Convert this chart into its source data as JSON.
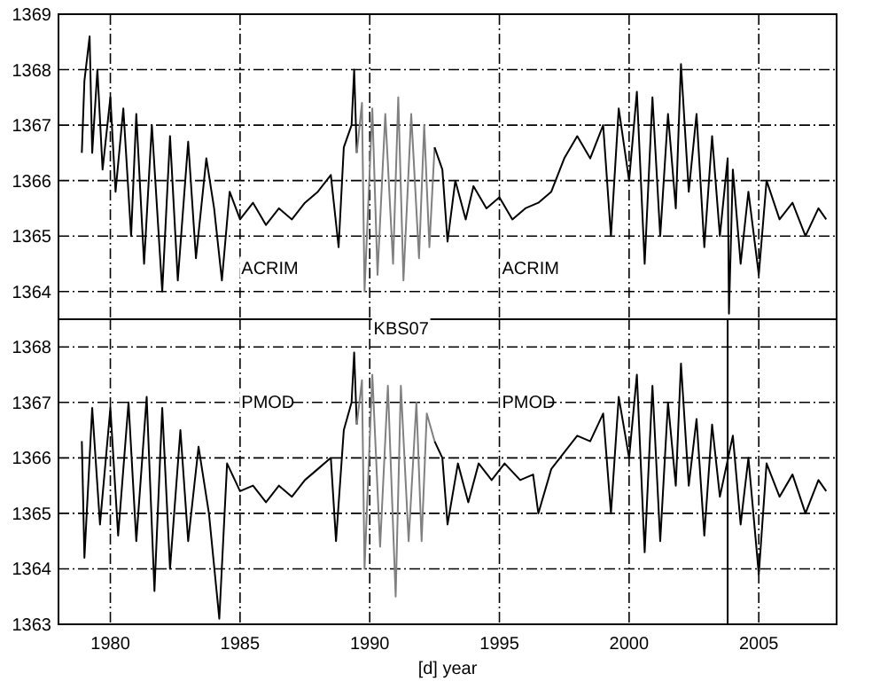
{
  "chart_data": [
    {
      "type": "line",
      "xlim": [
        1978,
        2008
      ],
      "xticks": [
        1980,
        1985,
        1990,
        1995,
        2000,
        2005
      ],
      "ylim": [
        1363.5,
        1369
      ],
      "yticks": [
        1364,
        1365,
        1366,
        1367,
        1368,
        1369
      ],
      "grid": true,
      "tick_labels": "y",
      "annotations": [
        "ACRIM",
        "ACRIM"
      ],
      "series": [
        {
          "color": "#000000",
          "x": [
            1978.9,
            1979.0,
            1979.2,
            1979.3,
            1979.5,
            1979.7,
            1980.0,
            1980.2,
            1980.5,
            1980.8,
            1981.0,
            1981.3,
            1981.6,
            1982.0,
            1982.3,
            1982.6,
            1983.0,
            1983.3,
            1983.7,
            1984.0,
            1984.3,
            1984.6,
            1985.0,
            1985.5,
            1986.0,
            1986.5,
            1987.0,
            1987.5,
            1988.0,
            1988.5,
            1988.8,
            1989.0,
            1989.3,
            1989.4,
            1989.5
          ],
          "values": [
            1366.5,
            1367.8,
            1368.6,
            1366.5,
            1368.0,
            1366.2,
            1367.5,
            1365.8,
            1367.3,
            1365.0,
            1367.2,
            1364.5,
            1367.0,
            1364.0,
            1366.8,
            1364.2,
            1366.7,
            1364.6,
            1366.4,
            1365.5,
            1364.2,
            1365.8,
            1365.3,
            1365.6,
            1365.2,
            1365.5,
            1365.3,
            1365.6,
            1365.8,
            1366.1,
            1364.8,
            1366.6,
            1367.0,
            1368.0,
            1366.5
          ]
        },
        {
          "color": "#808080",
          "x": [
            1989.5,
            1989.7,
            1989.8,
            1990.1,
            1990.3,
            1990.6,
            1990.9,
            1991.1,
            1991.3,
            1991.6,
            1991.9,
            1992.1,
            1992.3,
            1992.5
          ],
          "values": [
            1366.5,
            1367.4,
            1364.0,
            1367.3,
            1364.3,
            1367.2,
            1364.5,
            1367.5,
            1364.2,
            1367.2,
            1364.6,
            1367.0,
            1364.8,
            1366.6
          ]
        },
        {
          "color": "#000000",
          "x": [
            1992.5,
            1992.8,
            1993.0,
            1993.3,
            1993.7,
            1994.0,
            1994.5,
            1995.0,
            1995.5,
            1996.0,
            1996.5,
            1997.0,
            1997.5,
            1998.0,
            1998.5,
            1999.0,
            1999.3,
            1999.6,
            2000.0,
            2000.3,
            2000.6,
            2000.9,
            2001.2,
            2001.5,
            2001.8,
            2002.0,
            2002.3,
            2002.6,
            2002.9,
            2003.2,
            2003.5,
            2003.8,
            2003.85,
            2004.0,
            2004.3,
            2004.6,
            2005.0,
            2005.3,
            2005.8,
            2006.3,
            2006.8,
            2007.3,
            2007.6
          ],
          "values": [
            1366.6,
            1366.2,
            1364.9,
            1366.0,
            1365.3,
            1365.9,
            1365.5,
            1365.7,
            1365.3,
            1365.5,
            1365.6,
            1365.8,
            1366.4,
            1366.8,
            1366.4,
            1367.0,
            1365.0,
            1367.3,
            1366.0,
            1367.6,
            1364.5,
            1367.5,
            1365.0,
            1367.2,
            1365.5,
            1368.1,
            1365.8,
            1367.2,
            1364.8,
            1366.8,
            1365.0,
            1366.4,
            1363.6,
            1366.2,
            1364.5,
            1365.8,
            1364.3,
            1366.0,
            1365.3,
            1365.6,
            1365.0,
            1365.5,
            1365.3
          ]
        }
      ]
    },
    {
      "type": "line",
      "xlabel": "[d] year",
      "xlim": [
        1978,
        2008
      ],
      "xticks": [
        1980,
        1985,
        1990,
        1995,
        2000,
        2005
      ],
      "ylim": [
        1363,
        1368.5
      ],
      "yticks": [
        1363,
        1364,
        1365,
        1366,
        1367,
        1368
      ],
      "grid": true,
      "annotations": [
        "KBS07",
        "PMOD",
        "PMOD"
      ],
      "ref_lines": [
        {
          "axis": "x",
          "value": 2003.8,
          "label": null,
          "color": "#000000"
        }
      ],
      "series": [
        {
          "color": "#000000",
          "x": [
            1978.9,
            1979.0,
            1979.3,
            1979.6,
            1980.0,
            1980.3,
            1980.7,
            1981.0,
            1981.4,
            1981.7,
            1982.0,
            1982.3,
            1982.7,
            1983.0,
            1983.4,
            1983.8,
            1984.2,
            1984.5,
            1985.0,
            1985.5,
            1986.0,
            1986.5,
            1987.0,
            1987.5,
            1988.0,
            1988.5,
            1988.7,
            1989.0,
            1989.3,
            1989.4,
            1989.5
          ],
          "values": [
            1366.3,
            1364.2,
            1366.9,
            1364.8,
            1366.9,
            1364.6,
            1367.0,
            1364.5,
            1367.1,
            1363.6,
            1366.9,
            1364.0,
            1366.5,
            1364.5,
            1366.2,
            1365.0,
            1363.1,
            1365.9,
            1365.4,
            1365.5,
            1365.2,
            1365.5,
            1365.3,
            1365.6,
            1365.8,
            1366.0,
            1364.5,
            1366.5,
            1367.0,
            1367.9,
            1366.6
          ]
        },
        {
          "color": "#808080",
          "x": [
            1989.5,
            1989.7,
            1989.8,
            1990.1,
            1990.4,
            1990.7,
            1991.0,
            1991.2,
            1991.5,
            1991.8,
            1992.0,
            1992.2,
            1992.5
          ],
          "values": [
            1366.6,
            1367.4,
            1364.0,
            1367.5,
            1364.4,
            1367.3,
            1363.5,
            1367.3,
            1364.5,
            1367.0,
            1364.5,
            1366.8,
            1366.3
          ]
        },
        {
          "color": "#000000",
          "x": [
            1992.5,
            1992.8,
            1993.0,
            1993.4,
            1993.8,
            1994.2,
            1994.7,
            1995.2,
            1995.8,
            1996.3,
            1996.5,
            1997.0,
            1997.5,
            1998.0,
            1998.5,
            1999.0,
            1999.3,
            1999.6,
            2000.0,
            2000.3,
            2000.6,
            2000.9,
            2001.2,
            2001.5,
            2001.8,
            2002.0,
            2002.3,
            2002.6,
            2002.9,
            2003.2,
            2003.5,
            2004.0,
            2004.3,
            2004.6,
            2005.0,
            2005.3,
            2005.8,
            2006.3,
            2006.8,
            2007.3,
            2007.6
          ],
          "values": [
            1366.3,
            1366.0,
            1364.8,
            1365.9,
            1365.2,
            1365.9,
            1365.6,
            1365.9,
            1365.6,
            1365.7,
            1365.0,
            1365.8,
            1366.1,
            1366.4,
            1366.3,
            1366.8,
            1365.0,
            1367.1,
            1366.0,
            1367.5,
            1364.3,
            1367.3,
            1364.5,
            1367.0,
            1365.5,
            1367.7,
            1365.5,
            1366.7,
            1364.6,
            1366.6,
            1365.3,
            1366.4,
            1364.8,
            1366.0,
            1363.9,
            1365.9,
            1365.3,
            1365.7,
            1365.0,
            1365.6,
            1365.4
          ]
        }
      ]
    }
  ]
}
